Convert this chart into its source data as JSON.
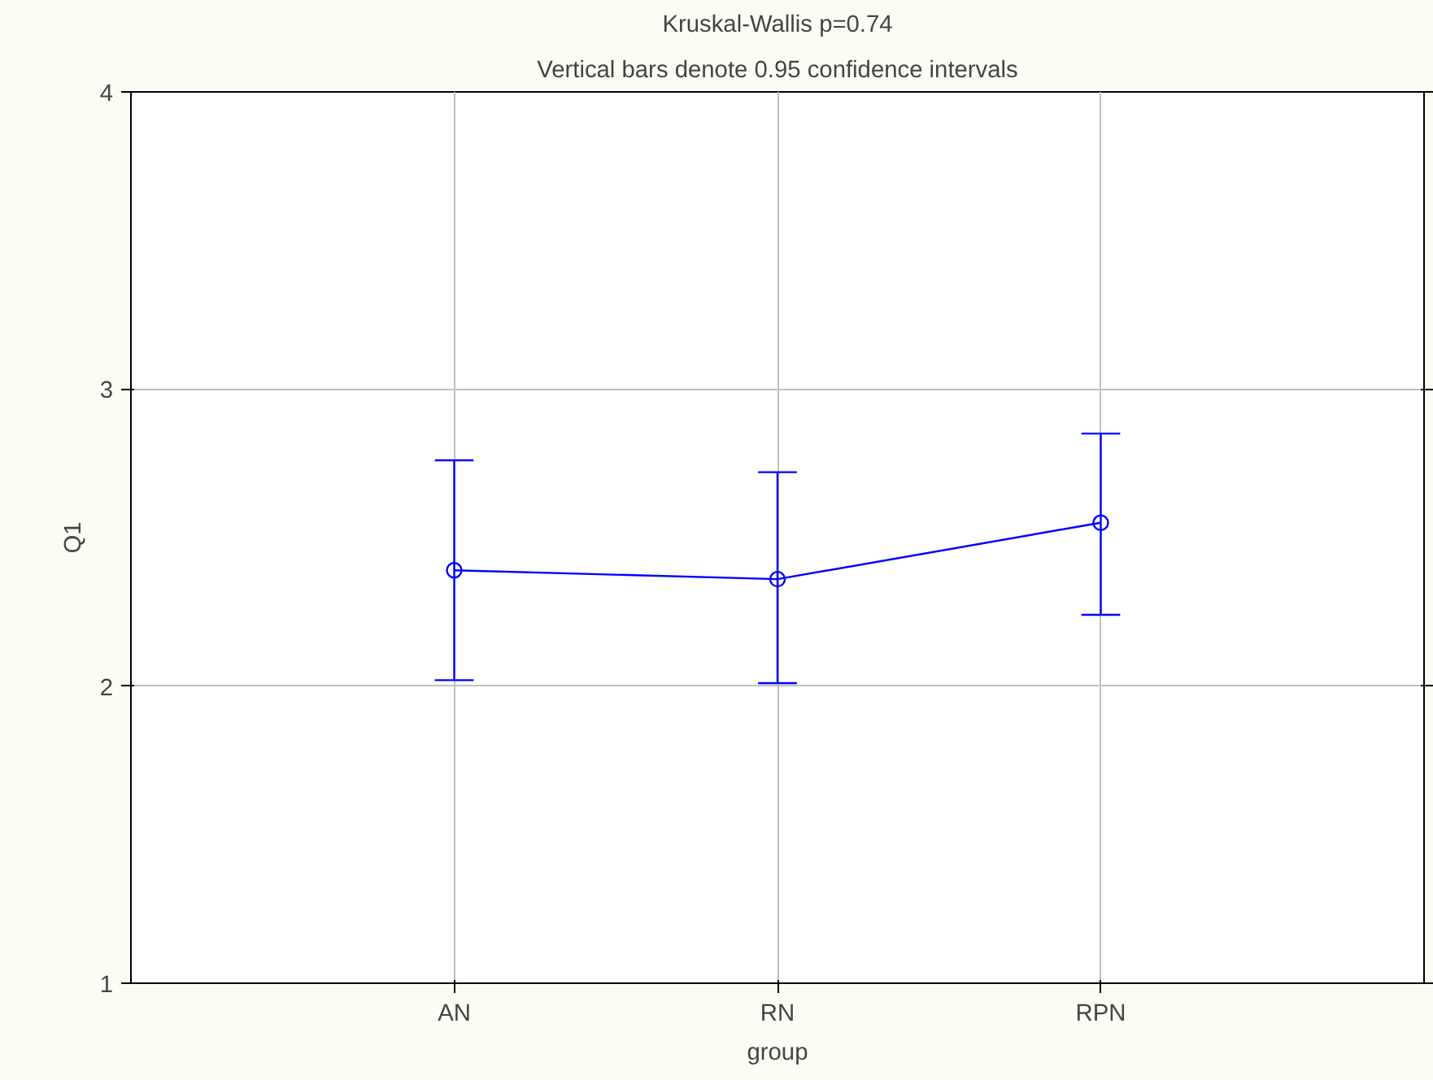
{
  "chart_data": {
    "type": "line",
    "title": "Kruskal-Wallis p=0.74",
    "subtitle": "Vertical bars denote 0.95 confidence intervals",
    "xlabel": "group",
    "ylabel": "Q1",
    "categories": [
      "AN",
      "RN",
      "RPN"
    ],
    "series": [
      {
        "color": "#0000ff",
        "values": [
          2.39,
          2.36,
          2.55
        ],
        "errors": [
          [
            2.02,
            2.76
          ],
          [
            2.01,
            2.72
          ],
          [
            2.24,
            2.85
          ]
        ]
      }
    ],
    "ylim": [
      1,
      4
    ],
    "yticks": [
      1,
      2,
      3,
      4
    ],
    "grid": true,
    "marker": "circle",
    "line_style": "solid"
  }
}
